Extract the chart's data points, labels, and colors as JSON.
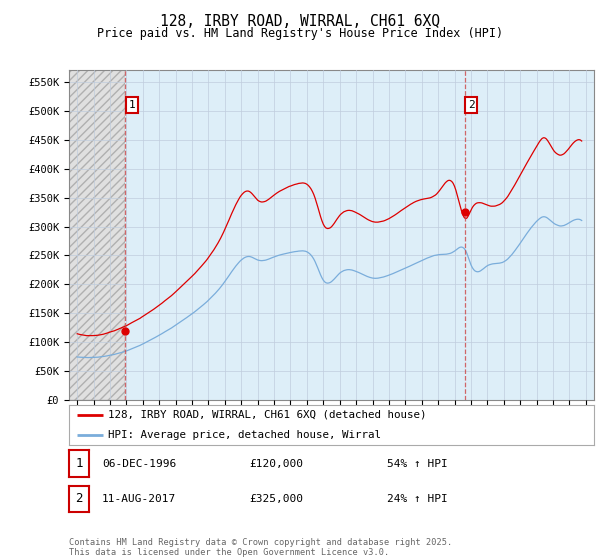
{
  "title": "128, IRBY ROAD, WIRRAL, CH61 6XQ",
  "subtitle": "Price paid vs. HM Land Registry's House Price Index (HPI)",
  "ylabel_ticks": [
    "£0",
    "£50K",
    "£100K",
    "£150K",
    "£200K",
    "£250K",
    "£300K",
    "£350K",
    "£400K",
    "£450K",
    "£500K",
    "£550K"
  ],
  "ytick_vals": [
    0,
    50000,
    100000,
    150000,
    200000,
    250000,
    300000,
    350000,
    400000,
    450000,
    500000,
    550000
  ],
  "ylim": [
    0,
    570000
  ],
  "xlim_start": 1993.5,
  "xlim_end": 2025.5,
  "xtick_years": [
    1994,
    1995,
    1996,
    1997,
    1998,
    1999,
    2000,
    2001,
    2002,
    2003,
    2004,
    2005,
    2006,
    2007,
    2008,
    2009,
    2010,
    2011,
    2012,
    2013,
    2014,
    2015,
    2016,
    2017,
    2018,
    2019,
    2020,
    2021,
    2022,
    2023,
    2024,
    2025
  ],
  "sale1_x": 1996.92,
  "sale1_y": 120000,
  "sale2_x": 2017.61,
  "sale2_y": 325000,
  "red_line_color": "#dd0000",
  "blue_line_color": "#7aaddb",
  "vline_color": "#dd4444",
  "grid_color": "#c8d8e8",
  "bg_color_left": "#d8d8d8",
  "bg_color_right": "#ddeeff",
  "legend_label_red": "128, IRBY ROAD, WIRRAL, CH61 6XQ (detached house)",
  "legend_label_blue": "HPI: Average price, detached house, Wirral",
  "annotation1_date": "06-DEC-1996",
  "annotation1_price": "£120,000",
  "annotation1_hpi": "54% ↑ HPI",
  "annotation2_date": "11-AUG-2017",
  "annotation2_price": "£325,000",
  "annotation2_hpi": "24% ↑ HPI",
  "footnote": "Contains HM Land Registry data © Crown copyright and database right 2025.\nThis data is licensed under the Open Government Licence v3.0."
}
